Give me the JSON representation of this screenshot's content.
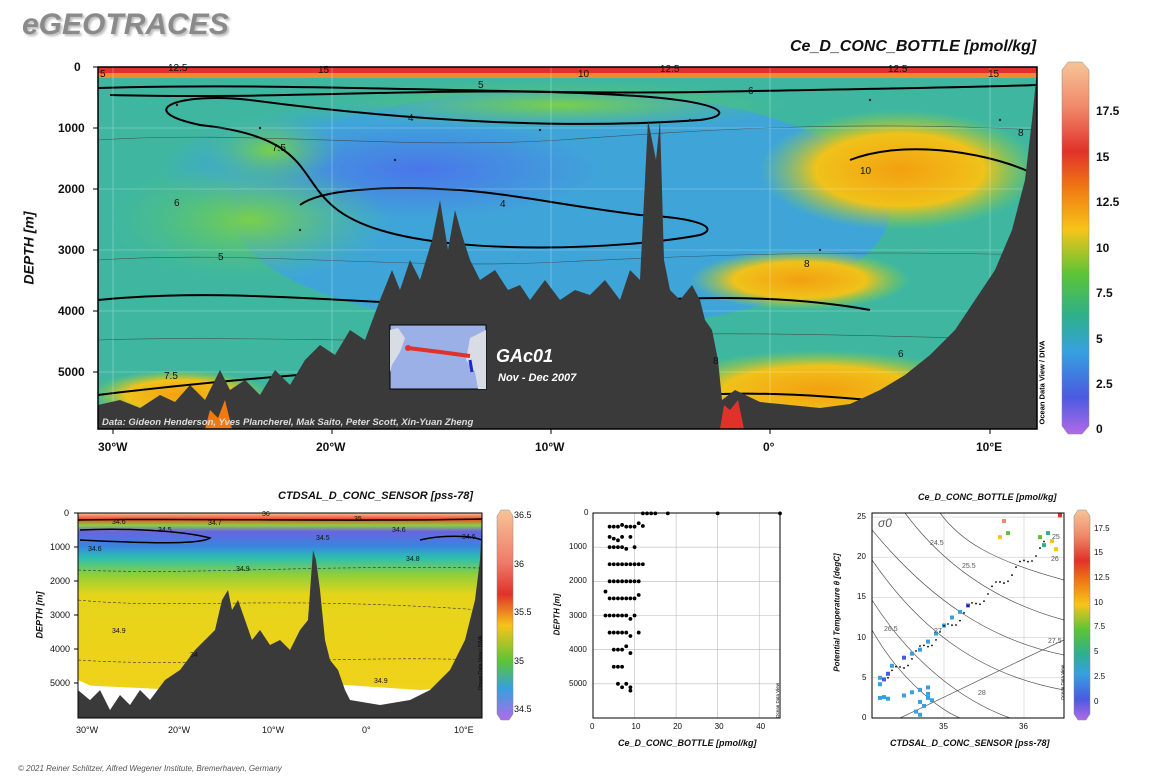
{
  "brand": "eGEOTRACES",
  "copyright": "© 2021 Reiner Schlitzer, Alfred Wegener Institute, Bremerhaven, Germany",
  "colors": {
    "ocean_section_bg": "#3a3a3a",
    "frame": "#000000"
  },
  "main_section": {
    "title": "Ce_D_CONC_BOTTLE [pmol/kg]",
    "ylabel": "DEPTH [m]",
    "y_ticks": [
      "0",
      "1000",
      "2000",
      "3000",
      "4000",
      "5000"
    ],
    "x_ticks": [
      "30°W",
      "20°W",
      "10°W",
      "0°",
      "10°E"
    ],
    "colorbar_ticks": [
      "17.5",
      "15",
      "12.5",
      "10",
      "7.5",
      "5",
      "2.5",
      "0"
    ],
    "colorbar_label": "Ocean Data View / DIVA",
    "contour_labels": [
      "12.5",
      "15",
      "10",
      "12.5",
      "12.5",
      "15",
      "5",
      "5",
      "6",
      "4",
      "7.5",
      "8",
      "6",
      "4",
      "10",
      "5",
      "8",
      "7.5",
      "6",
      "8"
    ],
    "credits": "Data: Gideon Henderson, Yves Plancherel, Mak Saito, Peter Scott, Xin-Yuan Zheng",
    "cruise": "GAc01",
    "period": "Nov - Dec 2007"
  },
  "left_section": {
    "title": "CTDSAL_D_CONC_SENSOR [pss-78]",
    "ylabel": "DEPTH [m]",
    "y_ticks": [
      "0",
      "1000",
      "2000",
      "3000",
      "4000",
      "5000"
    ],
    "x_ticks": [
      "30°W",
      "20°W",
      "10°W",
      "0°",
      "10°E"
    ],
    "colorbar_ticks": [
      "36.5",
      "36",
      "35.5",
      "35",
      "34.5"
    ],
    "colorbar_label": "Ocean Data View / DIVA",
    "contour_labels": [
      "36",
      "34.6",
      "34.7",
      "35",
      "34.5",
      "34.6",
      "34.5",
      "34.6",
      "34.6",
      "34.8",
      "34.9",
      "34.9",
      "34",
      "34.9"
    ]
  },
  "chart_data": [
    {
      "type": "scatter",
      "title": "",
      "xlabel": "Ce_D_CONC_BOTTLE [pmol/kg]",
      "ylabel": "DEPTH [m]",
      "x_ticks": [
        "0",
        "10",
        "20",
        "30",
        "40"
      ],
      "y_ticks": [
        "0",
        "1000",
        "2000",
        "3000",
        "4000",
        "5000"
      ],
      "xlim": [
        0,
        45
      ],
      "ylim": [
        0,
        6000
      ],
      "y_reversed": true,
      "corner_label": "Ocean Data View",
      "points": [
        [
          12,
          10
        ],
        [
          13,
          10
        ],
        [
          14,
          10
        ],
        [
          15,
          10
        ],
        [
          18,
          10
        ],
        [
          30,
          10
        ],
        [
          45,
          10
        ],
        [
          4,
          400
        ],
        [
          5,
          400
        ],
        [
          6,
          400
        ],
        [
          7,
          350
        ],
        [
          8,
          400
        ],
        [
          9,
          400
        ],
        [
          10,
          400
        ],
        [
          11,
          300
        ],
        [
          12,
          380
        ],
        [
          4,
          700
        ],
        [
          5,
          750
        ],
        [
          6,
          800
        ],
        [
          7,
          700
        ],
        [
          9,
          700
        ],
        [
          4,
          1000
        ],
        [
          5,
          1000
        ],
        [
          6,
          1000
        ],
        [
          7,
          1000
        ],
        [
          8,
          1050
        ],
        [
          10,
          1000
        ],
        [
          4,
          1500
        ],
        [
          5,
          1500
        ],
        [
          6,
          1500
        ],
        [
          7,
          1500
        ],
        [
          8,
          1500
        ],
        [
          9,
          1500
        ],
        [
          10,
          1500
        ],
        [
          11,
          1500
        ],
        [
          12,
          1500
        ],
        [
          4,
          2000
        ],
        [
          5,
          2000
        ],
        [
          6,
          2000
        ],
        [
          7,
          2000
        ],
        [
          8,
          2000
        ],
        [
          9,
          2000
        ],
        [
          10,
          2000
        ],
        [
          11,
          2000
        ],
        [
          3,
          2300
        ],
        [
          4,
          2500
        ],
        [
          5,
          2500
        ],
        [
          6,
          2500
        ],
        [
          7,
          2500
        ],
        [
          8,
          2500
        ],
        [
          9,
          2500
        ],
        [
          10,
          2500
        ],
        [
          11,
          2400
        ],
        [
          3,
          3000
        ],
        [
          4,
          3000
        ],
        [
          5,
          3000
        ],
        [
          6,
          3000
        ],
        [
          7,
          3000
        ],
        [
          8,
          3000
        ],
        [
          9,
          3100
        ],
        [
          10,
          3000
        ],
        [
          4,
          3500
        ],
        [
          5,
          3500
        ],
        [
          6,
          3500
        ],
        [
          7,
          3500
        ],
        [
          8,
          3500
        ],
        [
          9,
          3600
        ],
        [
          11,
          3500
        ],
        [
          5,
          4000
        ],
        [
          6,
          4000
        ],
        [
          7,
          4000
        ],
        [
          8,
          3900
        ],
        [
          9,
          4100
        ],
        [
          5,
          4500
        ],
        [
          6,
          4500
        ],
        [
          7,
          4500
        ],
        [
          6,
          5000
        ],
        [
          7,
          5100
        ],
        [
          8,
          5000
        ],
        [
          9,
          5100
        ],
        [
          9,
          5200
        ]
      ]
    },
    {
      "type": "scatter",
      "title": "Ce_D_CONC_BOTTLE [pmol/kg]",
      "xlabel": "CTDSAL_D_CONC_SENSOR [pss-78]",
      "ylabel": "Potential Temperature θ [degC]",
      "x_ticks": [
        "35",
        "36"
      ],
      "y_ticks": [
        "0",
        "5",
        "10",
        "15",
        "20",
        "25"
      ],
      "xlim": [
        34.1,
        36.5
      ],
      "ylim": [
        0,
        25.5
      ],
      "sigma_label": "σ0",
      "isopycnal_labels": [
        "24.5",
        "25",
        "25.5",
        "26",
        "26.5",
        "27",
        "27.5",
        "28"
      ],
      "colorbar_ticks": [
        "17.5",
        "15",
        "12.5",
        "10",
        "7.5",
        "5",
        "2.5",
        "0"
      ],
      "colorbar_label": "Ocean Data View",
      "points": [
        {
          "x": 34.2,
          "y": 4.2,
          "v": 5
        },
        {
          "x": 34.25,
          "y": 4.8,
          "v": 4
        },
        {
          "x": 34.3,
          "y": 5.5,
          "v": 3
        },
        {
          "x": 34.2,
          "y": 5.0,
          "v": 6
        },
        {
          "x": 34.35,
          "y": 6.5,
          "v": 5
        },
        {
          "x": 34.5,
          "y": 7.5,
          "v": 4
        },
        {
          "x": 34.6,
          "y": 8.0,
          "v": 5
        },
        {
          "x": 34.7,
          "y": 8.5,
          "v": 6
        },
        {
          "x": 34.8,
          "y": 9.5,
          "v": 5
        },
        {
          "x": 34.9,
          "y": 10.5,
          "v": 6
        },
        {
          "x": 35.0,
          "y": 11.5,
          "v": 7
        },
        {
          "x": 35.1,
          "y": 12.5,
          "v": 6
        },
        {
          "x": 35.2,
          "y": 13.2,
          "v": 5
        },
        {
          "x": 35.3,
          "y": 14.0,
          "v": 4
        },
        {
          "x": 34.2,
          "y": 2.5,
          "v": 6
        },
        {
          "x": 34.25,
          "y": 2.6,
          "v": 7
        },
        {
          "x": 34.3,
          "y": 2.4,
          "v": 7
        },
        {
          "x": 34.5,
          "y": 2.8,
          "v": 7
        },
        {
          "x": 34.6,
          "y": 3.2,
          "v": 6
        },
        {
          "x": 34.7,
          "y": 3.5,
          "v": 6
        },
        {
          "x": 34.7,
          "y": 2.0,
          "v": 6
        },
        {
          "x": 34.75,
          "y": 1.5,
          "v": 7
        },
        {
          "x": 34.8,
          "y": 2.5,
          "v": 6
        },
        {
          "x": 34.8,
          "y": 3.0,
          "v": 6
        },
        {
          "x": 34.85,
          "y": 2.2,
          "v": 6
        },
        {
          "x": 34.8,
          "y": 3.8,
          "v": 7
        },
        {
          "x": 34.65,
          "y": 0.8,
          "v": 6
        },
        {
          "x": 34.7,
          "y": 0.4,
          "v": 5
        },
        {
          "x": 35.7,
          "y": 22.5,
          "v": 11
        },
        {
          "x": 35.8,
          "y": 23.0,
          "v": 10
        },
        {
          "x": 35.75,
          "y": 24.5,
          "v": 18
        },
        {
          "x": 36.2,
          "y": 22.5,
          "v": 10
        },
        {
          "x": 36.35,
          "y": 22.0,
          "v": 11
        },
        {
          "x": 36.4,
          "y": 21.0,
          "v": 12
        },
        {
          "x": 36.45,
          "y": 25.2,
          "v": 16
        },
        {
          "x": 36.3,
          "y": 23.0,
          "v": 9
        },
        {
          "x": 36.25,
          "y": 21.5,
          "v": 8
        }
      ]
    }
  ]
}
